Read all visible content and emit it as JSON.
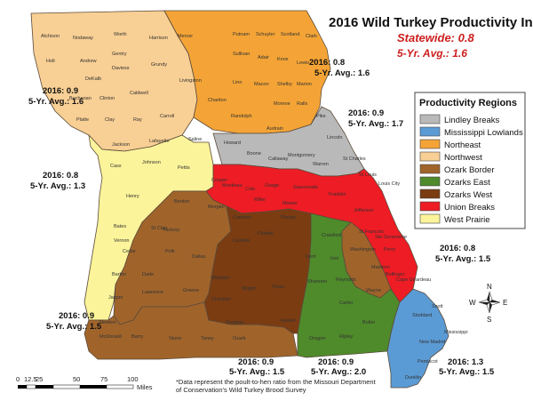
{
  "title": "2016 Wild Turkey Productivity Index*",
  "statewide": "Statewide: 0.8",
  "five_year_avg": "5-Yr. Avg.: 1.6",
  "colors": {
    "lindley_breaks": "#b9b9b9",
    "mississippi_lowlands": "#5b9bd5",
    "northeast": "#f4a436",
    "northwest": "#f8cf94",
    "ozark_border": "#a0642b",
    "ozarks_east": "#4f8a2b",
    "ozarks_west": "#7b3c12",
    "union_breaks": "#ee1c24",
    "west_prairie": "#fbf49a",
    "accent_red": "#cc1e1e"
  },
  "legend": {
    "title": "Productivity Regions",
    "items": [
      {
        "label": "Lindley Breaks",
        "color": "#b9b9b9"
      },
      {
        "label": "Mississippi Lowlands",
        "color": "#5b9bd5"
      },
      {
        "label": "Northeast",
        "color": "#f4a436"
      },
      {
        "label": "Northwest",
        "color": "#f8cf94"
      },
      {
        "label": "Ozark Border",
        "color": "#a0642b"
      },
      {
        "label": "Ozarks East",
        "color": "#4f8a2b"
      },
      {
        "label": "Ozarks West",
        "color": "#7b3c12"
      },
      {
        "label": "Union Breaks",
        "color": "#ee1c24"
      },
      {
        "label": "West Prairie",
        "color": "#fbf49a"
      }
    ]
  },
  "region_stats": [
    {
      "id": "northwest",
      "year": "2016: 0.9",
      "avg": "5-Yr. Avg.: 1.6"
    },
    {
      "id": "northeast",
      "year": "2016: 0.8",
      "avg": "5-Yr. Avg.: 1.6"
    },
    {
      "id": "lindley",
      "year": "2016: 0.9",
      "avg": "5-Yr. Avg.: 1.7"
    },
    {
      "id": "west-prairie",
      "year": "2016: 0.8",
      "avg": "5-Yr. Avg.: 1.3"
    },
    {
      "id": "union-breaks",
      "year": "2016: 0.8",
      "avg": "5-Yr. Avg.: 1.5"
    },
    {
      "id": "ozark-border",
      "year": "2016: 0.9",
      "avg": "5-Yr. Avg.: 1.5"
    },
    {
      "id": "ozarks-west",
      "year": "2016: 0.9",
      "avg": "5-Yr. Avg.: 1.5"
    },
    {
      "id": "ozarks-east",
      "year": "2016: 0.9",
      "avg": "5-Yr. Avg.: 2.0"
    },
    {
      "id": "lowlands",
      "year": "2016: 1.3",
      "avg": "5-Yr. Avg.: 1.5"
    }
  ],
  "counties": {
    "northwest": [
      "Atchison",
      "Nodaway",
      "Worth",
      "Harrison",
      "Mercer",
      "Holt",
      "Andrew",
      "Gentry",
      "DeKalb",
      "Daviess",
      "Grundy",
      "Buchanan",
      "Clinton",
      "Caldwell",
      "Livingston",
      "Platte",
      "Clay",
      "Ray",
      "Carroll"
    ],
    "northeast": [
      "Putnam",
      "Schuyler",
      "Scotland",
      "Clark",
      "Sullivan",
      "Adair",
      "Knox",
      "Lewis",
      "Linn",
      "Macon",
      "Shelby",
      "Marion",
      "Chariton",
      "Randolph",
      "Monroe",
      "Ralls",
      "Audrain"
    ],
    "lindley": [
      "Pike",
      "Lincoln",
      "Howard",
      "Boone",
      "Callaway",
      "Montgomery",
      "Warren",
      "St Charles"
    ],
    "west_prairie": [
      "Jackson",
      "Lafayette",
      "Saline",
      "Cass",
      "Johnson",
      "Pettis",
      "Henry",
      "Bates",
      "Vernon",
      "Barton",
      "Jasper",
      "Lawrence",
      "Greene"
    ],
    "union_breaks": [
      "Cooper",
      "Moniteau",
      "Cole",
      "Osage",
      "Gasconade",
      "Franklin",
      "St Louis",
      "Louis City",
      "Jefferson",
      "Ste Genevieve",
      "Perry",
      "Cape Girardeau",
      "Bollinger",
      "Cedar"
    ],
    "ozark_border": [
      "Benton",
      "Morgan",
      "Miller",
      "Maries",
      "Phelps",
      "Crawford",
      "Washington",
      "St Francois",
      "Madison",
      "Iron",
      "Wayne",
      "St Clair",
      "Hickory",
      "Polk",
      "Dallas",
      "Dade",
      "Webster",
      "Christian",
      "Newton",
      "McDonald",
      "Barry",
      "Stone",
      "Taney",
      "Ozark"
    ],
    "ozarks_west": [
      "Camden",
      "Pulaski",
      "Laclede",
      "Wright",
      "Texas",
      "Douglas",
      "Howell"
    ],
    "ozarks_east": [
      "Dent",
      "Shannon",
      "Reynolds",
      "Carter",
      "Oregon",
      "Ripley",
      "Butler"
    ],
    "lowlands": [
      "Scott",
      "Stoddard",
      "Mississippi",
      "New Madrid",
      "Pemiscot",
      "Dunklin"
    ]
  },
  "county_map_labels": [
    "Atchison",
    "Nodaway",
    "Worth",
    "Harrison",
    "Mercer",
    "Putnam",
    "Schuyler",
    "Scotland",
    "Clark",
    "Holt",
    "Andrew",
    "Gentry",
    "Daviess",
    "Grundy",
    "Sullivan",
    "Adair",
    "Knox",
    "Lewis",
    "DeKalb",
    "Livingston",
    "Linn",
    "Macon",
    "Shelby",
    "Marion",
    "Buchanan",
    "Clinton",
    "Caldwell",
    "Chariton",
    "Monroe",
    "Ralls",
    "Platte",
    "Clay",
    "Ray",
    "Carroll",
    "Randolph",
    "Audrain",
    "Pike",
    "Jackson",
    "Lafayette",
    "Saline",
    "Howard",
    "Boone",
    "Lincoln",
    "Cass",
    "Johnson",
    "Pettis",
    "Cooper",
    "Callaway",
    "Montgomery",
    "Warren",
    "St Charles",
    "Moniteau",
    "Cole",
    "Osage",
    "Gasconade",
    "Franklin",
    "St Louis",
    "Louis City",
    "Henry",
    "Benton",
    "Morgan",
    "Miller",
    "Maries",
    "Bates",
    "St Clair",
    "Camden",
    "Phelps",
    "Crawford",
    "Jefferson",
    "Vernon",
    "Hickory",
    "Pulaski",
    "Laclede",
    "Dent",
    "Washington",
    "St Francois",
    "Ste Genevieve",
    "Cedar",
    "Polk",
    "Dallas",
    "Iron",
    "Perry",
    "Barton",
    "Dade",
    "Webster",
    "Wright",
    "Texas",
    "Shannon",
    "Reynolds",
    "Madison",
    "Jasper",
    "Lawrence",
    "Greene",
    "Carter",
    "Wayne",
    "Bollinger",
    "Cape Girardeau",
    "Newton",
    "Christian",
    "Douglas",
    "Howell",
    "Stoddard",
    "Scott",
    "McDonald",
    "Barry",
    "Stone",
    "Taney",
    "Ozark",
    "Oregon",
    "Ripley",
    "Butler",
    "Mississippi",
    "New Madrid",
    "Pemiscot",
    "Dunklin"
  ],
  "scale": {
    "ticks": [
      "0",
      "12.5",
      "25",
      "50",
      "75",
      "100"
    ],
    "unit": "Miles"
  },
  "compass": {
    "n": "N",
    "s": "S",
    "e": "E",
    "w": "W"
  },
  "footnote": {
    "line1": "*Data represent the poult-to-hen ratio from the Missouri Department",
    "line2": "of Conservation's Wild Turkey Brood Survey"
  }
}
